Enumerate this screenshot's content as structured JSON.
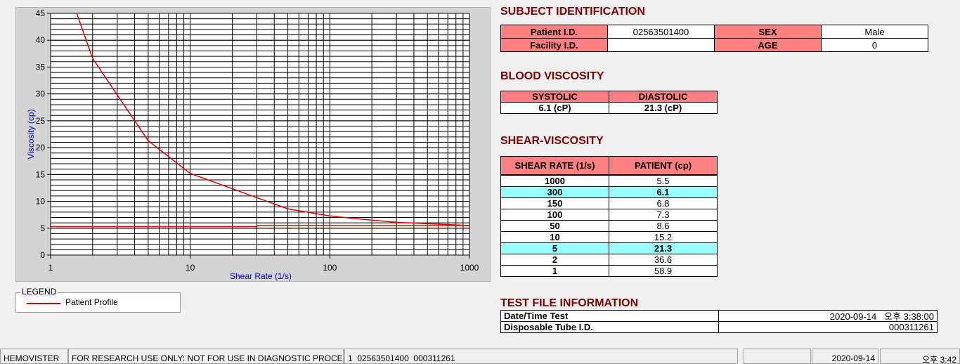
{
  "chart_data": {
    "type": "line",
    "xlabel": "Shear Rate (1/s)",
    "ylabel": "Viscosity (cp)",
    "xscale": "log",
    "xlim": [
      1,
      1000
    ],
    "ylim": [
      0,
      45
    ],
    "xticks": [
      1,
      10,
      100,
      1000
    ],
    "yticks": [
      0,
      5,
      10,
      15,
      20,
      25,
      30,
      35,
      40,
      45
    ],
    "grid": true,
    "series": [
      {
        "name": "Patient Profile",
        "color": "#e00000",
        "x": [
          1,
          2,
          5,
          10,
          50,
          100,
          150,
          300,
          1000
        ],
        "values": [
          58.9,
          36.6,
          21.3,
          15.2,
          8.6,
          7.3,
          6.8,
          6.1,
          5.5
        ]
      },
      {
        "color": "#e00000",
        "x": [
          1,
          30,
          30,
          1000
        ],
        "values": [
          5.3,
          5.3,
          5.5,
          5.5
        ]
      }
    ]
  },
  "legend": {
    "title": "LEGEND"
  },
  "subject": {
    "title": "SUBJECT IDENTIFICATION",
    "rows": [
      [
        "Patient I.D.",
        "02563501400",
        "SEX",
        "Male"
      ],
      [
        "Facility I.D.",
        null,
        "AGE",
        "0"
      ]
    ]
  },
  "blood": {
    "title": "BLOOD VISCOSITY",
    "header": [
      "SYSTOLIC",
      "DIASTOLIC"
    ],
    "values": [
      "6.1 (cP)",
      "21.3 (cP)"
    ]
  },
  "shear": {
    "title": "SHEAR-VISCOSITY",
    "header": [
      "SHEAR RATE (1/s)",
      "PATIENT (cp)"
    ],
    "rows": [
      [
        "1000",
        "5.5"
      ],
      [
        "300",
        "6.1"
      ],
      [
        "150",
        "6.8"
      ],
      [
        "100",
        "7.3"
      ],
      [
        "50",
        "8.6"
      ],
      [
        "10",
        "15.2"
      ],
      [
        "5",
        "21.3"
      ],
      [
        "2",
        "36.6"
      ],
      [
        "1",
        "58.9"
      ]
    ],
    "highlighted_rows": [
      1,
      6
    ],
    "highlight_color": "#99ffff"
  },
  "test_file": {
    "title": "TEST FILE INFORMATION",
    "rows": [
      [
        "Date/Time Test",
        "2020-09-14   오후 3:38:00"
      ],
      [
        "Disposable Tube I.D.",
        "000311261"
      ]
    ]
  },
  "status": [
    "HEMOVISTER",
    "FOR RESEARCH USE ONLY: NOT FOR USE IN DIAGNOSTIC PROCEDURES",
    "1  02563501400  000311261",
    "2020-09-14",
    "오후 3:42"
  ]
}
